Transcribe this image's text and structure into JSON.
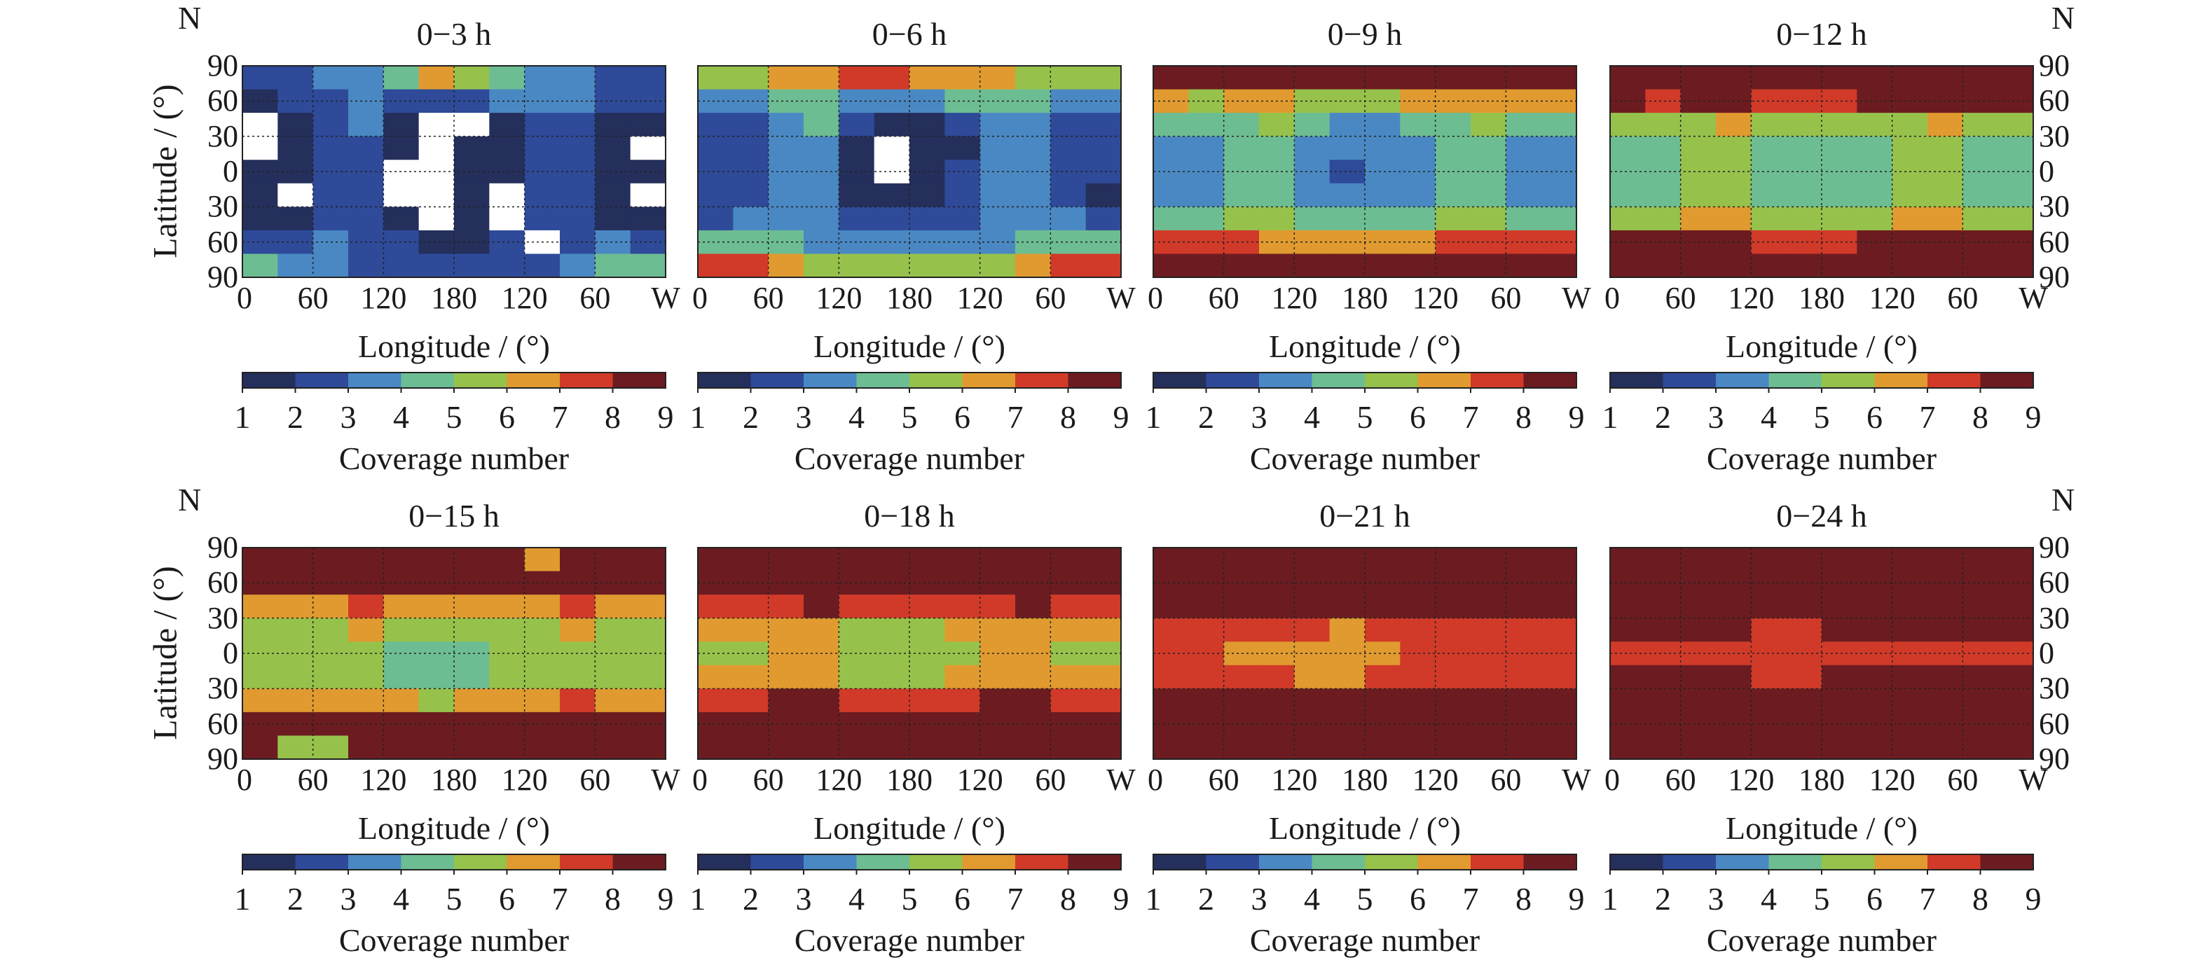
{
  "chart_data": {
    "type": "heatmap",
    "xlabel": "Longitude / (°)",
    "ylabel": "Latitude / (°)",
    "north_label": "N",
    "lon_ticks": [
      "0",
      "60",
      "120",
      "180",
      "120",
      "60",
      "W"
    ],
    "lat_ticks": [
      "90",
      "60",
      "30",
      "0",
      "30",
      "60",
      "90"
    ],
    "grid": true,
    "lat_band_centers": [
      80,
      60,
      40,
      20,
      0,
      -20,
      -40,
      -60,
      -80
    ],
    "lon_bin_width_deg": 30,
    "colorbar": {
      "label": "Coverage number",
      "ticks": [
        "1",
        "2",
        "3",
        "4",
        "5",
        "6",
        "7",
        "8",
        "9"
      ],
      "colors": [
        "#252f5c",
        "#2e4a99",
        "#4a88c3",
        "#6dbd93",
        "#96c24b",
        "#e09a2f",
        "#d13a28",
        "#6c1c20"
      ],
      "no_coverage_color": "#ffffff"
    },
    "panels": [
      {
        "title": "0−3 h",
        "grid": [
          [
            2,
            2,
            3,
            3,
            4,
            6,
            5,
            4,
            3,
            3,
            2,
            2
          ],
          [
            1,
            2,
            2,
            3,
            2,
            2,
            2,
            3,
            3,
            3,
            2,
            2
          ],
          [
            0,
            1,
            2,
            3,
            1,
            0,
            0,
            1,
            2,
            2,
            1,
            1
          ],
          [
            0,
            1,
            2,
            2,
            1,
            0,
            1,
            1,
            2,
            2,
            1,
            0
          ],
          [
            1,
            1,
            2,
            2,
            0,
            0,
            1,
            1,
            2,
            2,
            1,
            1
          ],
          [
            1,
            0,
            2,
            2,
            0,
            0,
            1,
            0,
            2,
            2,
            1,
            0
          ],
          [
            1,
            1,
            2,
            2,
            1,
            0,
            1,
            0,
            2,
            2,
            1,
            1
          ],
          [
            2,
            2,
            3,
            2,
            2,
            1,
            1,
            2,
            0,
            2,
            3,
            2
          ],
          [
            4,
            3,
            3,
            2,
            2,
            2,
            2,
            2,
            2,
            3,
            4,
            4
          ]
        ]
      },
      {
        "title": "0−6 h",
        "grid": [
          [
            5,
            5,
            6,
            6,
            7,
            7,
            6,
            6,
            6,
            5,
            5,
            5
          ],
          [
            3,
            3,
            4,
            4,
            3,
            3,
            3,
            4,
            4,
            4,
            3,
            3
          ],
          [
            2,
            2,
            3,
            4,
            2,
            1,
            1,
            2,
            3,
            3,
            2,
            2
          ],
          [
            2,
            2,
            3,
            3,
            1,
            0,
            1,
            1,
            3,
            3,
            2,
            2
          ],
          [
            2,
            2,
            3,
            3,
            1,
            0,
            1,
            2,
            3,
            3,
            2,
            2
          ],
          [
            2,
            2,
            3,
            3,
            1,
            1,
            1,
            2,
            3,
            3,
            2,
            1
          ],
          [
            2,
            3,
            3,
            3,
            2,
            2,
            2,
            2,
            3,
            3,
            3,
            2
          ],
          [
            4,
            4,
            4,
            3,
            3,
            3,
            3,
            3,
            3,
            4,
            4,
            4
          ],
          [
            7,
            7,
            6,
            5,
            5,
            5,
            5,
            5,
            5,
            6,
            7,
            7
          ]
        ]
      },
      {
        "title": "0−9 h",
        "grid": [
          [
            9,
            9,
            9,
            9,
            8,
            9,
            9,
            9,
            9,
            9,
            9,
            9
          ],
          [
            6,
            5,
            6,
            6,
            5,
            5,
            5,
            6,
            6,
            6,
            6,
            6
          ],
          [
            4,
            4,
            4,
            5,
            4,
            3,
            3,
            4,
            4,
            5,
            4,
            4
          ],
          [
            3,
            3,
            4,
            4,
            3,
            3,
            3,
            3,
            4,
            4,
            3,
            3
          ],
          [
            3,
            3,
            4,
            4,
            3,
            2,
            3,
            3,
            4,
            4,
            3,
            3
          ],
          [
            3,
            3,
            4,
            4,
            3,
            3,
            3,
            3,
            4,
            4,
            3,
            3
          ],
          [
            4,
            4,
            5,
            5,
            4,
            4,
            4,
            4,
            5,
            5,
            4,
            4
          ],
          [
            7,
            7,
            7,
            6,
            6,
            6,
            6,
            6,
            7,
            7,
            7,
            7
          ],
          [
            9,
            9,
            9,
            9,
            9,
            9,
            9,
            9,
            9,
            9,
            9,
            9
          ]
        ]
      },
      {
        "title": "0−12 h",
        "grid": [
          [
            9,
            9,
            9,
            9,
            9,
            9,
            9,
            9,
            9,
            9,
            9,
            9
          ],
          [
            8,
            7,
            8,
            8,
            7,
            7,
            7,
            8,
            8,
            8,
            8,
            8
          ],
          [
            5,
            5,
            5,
            6,
            5,
            5,
            5,
            5,
            5,
            6,
            5,
            5
          ],
          [
            4,
            4,
            5,
            5,
            4,
            4,
            4,
            4,
            5,
            5,
            4,
            4
          ],
          [
            4,
            4,
            5,
            5,
            4,
            4,
            4,
            4,
            5,
            5,
            4,
            4
          ],
          [
            4,
            4,
            5,
            5,
            4,
            4,
            4,
            4,
            5,
            5,
            4,
            4
          ],
          [
            5,
            5,
            6,
            6,
            5,
            5,
            5,
            5,
            6,
            6,
            5,
            5
          ],
          [
            8,
            8,
            8,
            8,
            7,
            7,
            7,
            8,
            8,
            8,
            8,
            8
          ],
          [
            9,
            9,
            9,
            9,
            9,
            9,
            9,
            9,
            9,
            9,
            9,
            9
          ]
        ]
      },
      {
        "title": "0−15 h",
        "grid": [
          [
            9,
            9,
            9,
            9,
            9,
            9,
            9,
            9,
            6,
            9,
            9,
            9
          ],
          [
            9,
            9,
            9,
            9,
            9,
            9,
            9,
            9,
            9,
            9,
            9,
            9
          ],
          [
            6,
            6,
            6,
            7,
            6,
            6,
            6,
            6,
            6,
            7,
            6,
            6
          ],
          [
            5,
            5,
            5,
            6,
            5,
            5,
            5,
            5,
            5,
            6,
            5,
            5
          ],
          [
            5,
            5,
            5,
            5,
            4,
            4,
            4,
            5,
            5,
            5,
            5,
            5
          ],
          [
            5,
            5,
            5,
            5,
            4,
            4,
            4,
            5,
            5,
            5,
            5,
            5
          ],
          [
            6,
            6,
            6,
            6,
            6,
            5,
            6,
            6,
            6,
            7,
            6,
            6
          ],
          [
            9,
            9,
            9,
            9,
            9,
            9,
            9,
            9,
            9,
            9,
            9,
            9
          ],
          [
            9,
            5,
            5,
            9,
            9,
            9,
            9,
            9,
            9,
            9,
            9,
            9
          ]
        ]
      },
      {
        "title": "0−18 h",
        "grid": [
          [
            9,
            9,
            9,
            9,
            9,
            9,
            9,
            9,
            9,
            9,
            9,
            9
          ],
          [
            9,
            9,
            9,
            9,
            9,
            9,
            9,
            9,
            9,
            9,
            9,
            9
          ],
          [
            7,
            7,
            7,
            8,
            7,
            7,
            7,
            7,
            7,
            8,
            7,
            7
          ],
          [
            6,
            6,
            6,
            6,
            5,
            5,
            5,
            6,
            6,
            6,
            6,
            6
          ],
          [
            5,
            5,
            6,
            6,
            5,
            5,
            5,
            5,
            6,
            6,
            5,
            5
          ],
          [
            6,
            6,
            6,
            6,
            5,
            5,
            5,
            6,
            6,
            6,
            6,
            6
          ],
          [
            7,
            7,
            8,
            8,
            7,
            7,
            7,
            7,
            8,
            8,
            7,
            7
          ],
          [
            9,
            9,
            9,
            9,
            9,
            9,
            9,
            9,
            9,
            9,
            9,
            9
          ],
          [
            9,
            9,
            9,
            9,
            9,
            9,
            9,
            9,
            9,
            9,
            9,
            9
          ]
        ]
      },
      {
        "title": "0−21 h",
        "grid": [
          [
            9,
            9,
            9,
            9,
            9,
            9,
            9,
            9,
            9,
            9,
            9,
            9
          ],
          [
            9,
            9,
            9,
            9,
            9,
            9,
            9,
            9,
            9,
            9,
            9,
            9
          ],
          [
            9,
            9,
            8,
            9,
            9,
            9,
            9,
            9,
            8,
            9,
            9,
            9
          ],
          [
            7,
            7,
            7,
            7,
            7,
            6,
            7,
            7,
            7,
            7,
            7,
            7
          ],
          [
            7,
            7,
            6,
            6,
            6,
            6,
            6,
            7,
            7,
            7,
            7,
            7
          ],
          [
            7,
            7,
            7,
            7,
            6,
            6,
            7,
            7,
            7,
            7,
            7,
            7
          ],
          [
            9,
            9,
            9,
            9,
            8,
            8,
            9,
            9,
            9,
            9,
            9,
            9
          ],
          [
            9,
            9,
            9,
            9,
            9,
            9,
            9,
            9,
            9,
            9,
            9,
            9
          ],
          [
            9,
            9,
            9,
            9,
            9,
            9,
            9,
            9,
            9,
            9,
            9,
            9
          ]
        ]
      },
      {
        "title": "0−24 h",
        "grid": [
          [
            9,
            9,
            9,
            9,
            9,
            9,
            9,
            9,
            9,
            9,
            9,
            9
          ],
          [
            9,
            9,
            9,
            9,
            9,
            9,
            9,
            9,
            9,
            9,
            9,
            9
          ],
          [
            9,
            9,
            9,
            9,
            9,
            9,
            9,
            9,
            9,
            9,
            9,
            9
          ],
          [
            8,
            8,
            8,
            8,
            7,
            7,
            8,
            8,
            8,
            8,
            8,
            8
          ],
          [
            7,
            7,
            7,
            7,
            7,
            7,
            7,
            7,
            7,
            7,
            7,
            7
          ],
          [
            8,
            8,
            8,
            8,
            7,
            7,
            8,
            8,
            8,
            8,
            8,
            8
          ],
          [
            9,
            9,
            9,
            9,
            9,
            9,
            9,
            9,
            9,
            9,
            9,
            9
          ],
          [
            9,
            9,
            9,
            9,
            9,
            9,
            9,
            9,
            9,
            9,
            9,
            9
          ],
          [
            9,
            9,
            9,
            9,
            9,
            9,
            9,
            9,
            9,
            9,
            9,
            9
          ]
        ]
      }
    ]
  }
}
